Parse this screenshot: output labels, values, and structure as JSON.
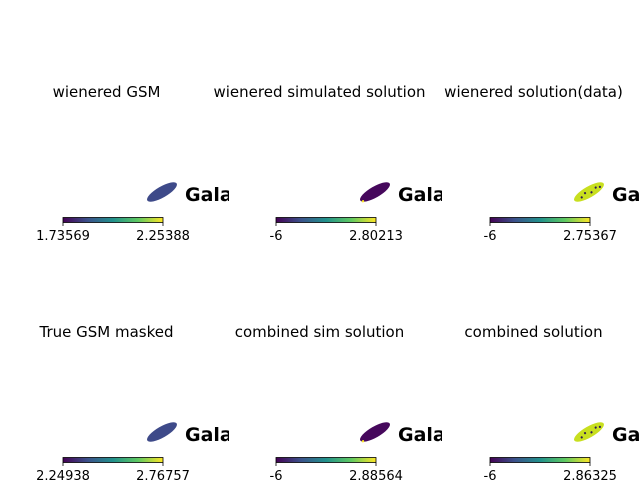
{
  "panels": [
    {
      "title": "wienered GSM",
      "label": "Gala",
      "cmin": "1.73569",
      "cmax": "2.25388",
      "style": "mid"
    },
    {
      "title": "wienered simulated solution",
      "label": "Gala",
      "cmin": "-6",
      "cmax": "2.80213",
      "style": "low"
    },
    {
      "title": "wienered solution(data)",
      "label": "Gala",
      "cmin": "-6",
      "cmax": "2.75367",
      "style": "high"
    },
    {
      "title": "True GSM masked",
      "label": "Gala",
      "cmin": "2.24938",
      "cmax": "2.76757",
      "style": "mid"
    },
    {
      "title": "combined sim solution",
      "label": "Gala",
      "cmin": "-6",
      "cmax": "2.88564",
      "style": "low"
    },
    {
      "title": "combined solution",
      "label": "Gala",
      "cmin": "-6",
      "cmax": "2.86325",
      "style": "high"
    }
  ],
  "colors": {
    "viridis": [
      "#440154",
      "#3b528b",
      "#21918c",
      "#5ec962",
      "#fde725"
    ],
    "mid": "#3e4a89",
    "low": "#46085c",
    "high": "#c8df1f"
  },
  "chart_data": {
    "type": "heatmap",
    "panels": [
      {
        "title": "wienered GSM",
        "colorbar_range": [
          1.73569,
          2.25388
        ]
      },
      {
        "title": "wienered simulated solution",
        "colorbar_range": [
          -6,
          2.80213
        ]
      },
      {
        "title": "wienered solution(data)",
        "colorbar_range": [
          -6,
          2.75367
        ]
      },
      {
        "title": "True GSM masked",
        "colorbar_range": [
          2.24938,
          2.76757
        ]
      },
      {
        "title": "combined sim solution",
        "colorbar_range": [
          -6,
          2.88564
        ]
      },
      {
        "title": "combined solution",
        "colorbar_range": [
          -6,
          2.86325
        ]
      }
    ],
    "colormap": "viridis",
    "grid": false
  }
}
